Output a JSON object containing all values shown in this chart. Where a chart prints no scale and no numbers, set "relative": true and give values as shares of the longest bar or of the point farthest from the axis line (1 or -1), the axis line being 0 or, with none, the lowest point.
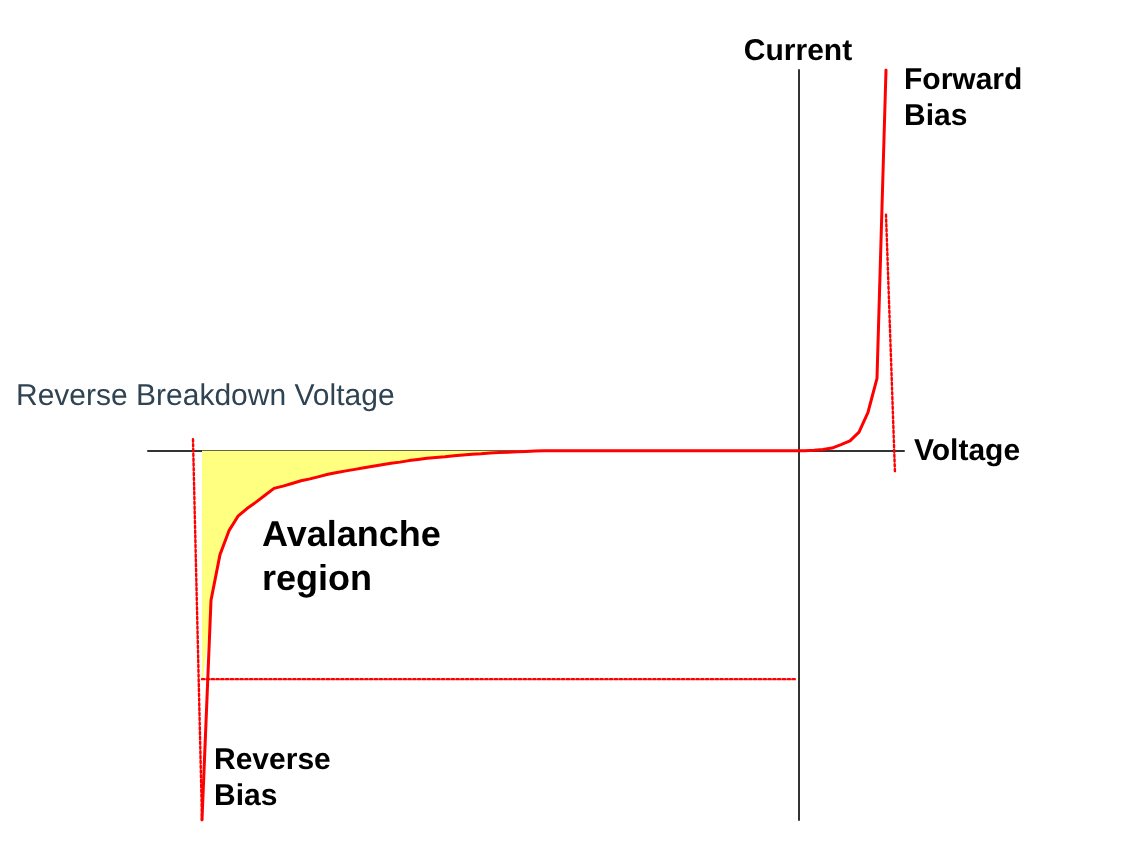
{
  "chart_data": {
    "type": "line",
    "relative": true,
    "xlabel": "Voltage",
    "ylabel": "Current",
    "grid": false,
    "marker": "none",
    "categories": [
      null,
      null,
      null,
      null,
      null,
      null,
      null,
      null,
      null,
      null,
      null,
      null,
      null,
      null,
      null,
      null,
      null,
      null,
      null,
      null,
      null,
      null,
      null,
      null,
      null,
      null,
      null,
      null,
      null,
      null,
      null,
      null,
      null,
      null,
      null,
      null,
      null,
      null,
      null,
      null,
      null,
      null,
      null,
      null,
      null,
      null,
      null,
      null,
      null,
      null,
      null,
      null,
      null,
      null,
      null,
      null,
      null,
      null,
      null,
      null,
      null,
      null,
      null,
      null,
      null,
      null,
      null,
      null,
      null,
      null,
      null,
      null,
      null,
      null,
      null,
      null,
      null,
      null,
      null,
      null,
      null,
      null,
      null,
      null,
      null
    ],
    "annotations": [
      "Forward Bias",
      "Reverse Breakdown Voltage",
      "Avalanche region",
      "Reverse Bias"
    ],
    "series": [
      {
        "type": "area",
        "color": "#ffff80",
        "values": [
          null,
          null,
          null,
          null,
          null,
          null,
          -0.6,
          -0.393,
          -0.273,
          -0.21,
          -0.172,
          -0.152,
          -0.135,
          -0.117,
          -0.099,
          -0.093,
          -0.086,
          -0.079,
          -0.074,
          -0.068,
          -0.062,
          -0.057,
          -0.053,
          -0.049,
          -0.045,
          -0.041,
          -0.037,
          -0.033,
          -0.03,
          -0.026,
          -0.023,
          -0.02,
          -0.018,
          -0.016,
          -0.013,
          -0.011,
          -0.009,
          -0.008,
          -0.006,
          -0.005,
          -0.004,
          -0.003,
          -0.002,
          -0.001,
          0,
          null,
          null,
          null,
          null,
          null,
          null,
          null,
          null,
          null,
          null,
          null,
          null,
          null,
          null,
          null,
          null,
          null,
          null,
          null,
          null,
          null,
          null,
          null,
          null,
          null,
          null,
          null,
          null,
          null,
          null,
          null,
          null,
          null,
          null,
          null,
          null,
          null,
          null,
          null,
          null
        ]
      },
      {
        "type": "line",
        "line_style": "dotted",
        "color": "#ff0000",
        "values": [
          null,
          null,
          null,
          null,
          null,
          0.03,
          -0.97,
          null,
          null,
          null,
          null,
          null,
          null,
          null,
          null,
          null,
          null,
          null,
          null,
          null,
          null,
          null,
          null,
          null,
          null,
          null,
          null,
          null,
          null,
          null,
          null,
          null,
          null,
          null,
          null,
          null,
          null,
          null,
          null,
          null,
          null,
          null,
          null,
          null,
          null,
          null,
          null,
          null,
          null,
          null,
          null,
          null,
          null,
          null,
          null,
          null,
          null,
          null,
          null,
          null,
          null,
          null,
          null,
          null,
          null,
          null,
          null,
          null,
          null,
          null,
          null,
          null,
          null,
          null,
          null,
          null,
          null,
          null,
          null,
          null,
          null,
          null,
          null,
          null,
          null
        ]
      },
      {
        "type": "line",
        "line_style": "dotted",
        "color": "#ff0000",
        "values": [
          null,
          null,
          null,
          null,
          null,
          null,
          -0.6,
          -0.6,
          -0.6,
          -0.6,
          -0.6,
          -0.6,
          -0.6,
          -0.6,
          -0.6,
          -0.6,
          -0.6,
          -0.6,
          -0.6,
          -0.6,
          -0.6,
          -0.6,
          -0.6,
          -0.6,
          -0.6,
          -0.6,
          -0.6,
          -0.6,
          -0.6,
          -0.6,
          -0.6,
          -0.6,
          -0.6,
          -0.6,
          -0.6,
          -0.6,
          -0.6,
          -0.6,
          -0.6,
          -0.6,
          -0.6,
          -0.6,
          -0.6,
          -0.6,
          -0.6,
          -0.6,
          -0.6,
          -0.6,
          -0.6,
          -0.6,
          -0.6,
          -0.6,
          -0.6,
          -0.6,
          -0.6,
          -0.6,
          -0.6,
          -0.6,
          -0.6,
          -0.6,
          -0.6,
          -0.6,
          -0.6,
          -0.6,
          -0.6,
          -0.6,
          -0.6,
          -0.6,
          -0.6,
          -0.6,
          -0.6,
          -0.6,
          -0.6,
          null,
          null,
          null,
          null,
          null,
          null,
          null,
          null,
          null,
          null,
          null,
          null
        ]
      },
      {
        "type": "line",
        "line_style": "dotted",
        "color": "#ff0000",
        "values": [
          null,
          null,
          null,
          null,
          null,
          null,
          null,
          null,
          null,
          null,
          null,
          null,
          null,
          null,
          null,
          null,
          null,
          null,
          null,
          null,
          null,
          null,
          null,
          null,
          null,
          null,
          null,
          null,
          null,
          null,
          null,
          null,
          null,
          null,
          null,
          null,
          null,
          null,
          null,
          null,
          null,
          null,
          null,
          null,
          null,
          null,
          null,
          null,
          null,
          null,
          null,
          null,
          null,
          null,
          null,
          null,
          null,
          null,
          null,
          null,
          null,
          null,
          null,
          null,
          null,
          null,
          null,
          null,
          null,
          null,
          null,
          null,
          null,
          null,
          null,
          null,
          null,
          null,
          null,
          null,
          null,
          null,
          0.62,
          -0.06,
          null
        ]
      },
      {
        "color": "#ff0000",
        "values": [
          null,
          null,
          null,
          null,
          null,
          null,
          -0.97,
          -0.393,
          -0.273,
          -0.21,
          -0.172,
          -0.152,
          -0.135,
          -0.117,
          -0.099,
          -0.093,
          -0.086,
          -0.079,
          -0.074,
          -0.068,
          -0.062,
          -0.057,
          -0.053,
          -0.049,
          -0.045,
          -0.041,
          -0.037,
          -0.033,
          -0.03,
          -0.026,
          -0.023,
          -0.02,
          -0.018,
          -0.016,
          -0.013,
          -0.011,
          -0.009,
          -0.008,
          -0.006,
          -0.005,
          -0.004,
          -0.003,
          -0.002,
          -0.001,
          0,
          0,
          0,
          0,
          0,
          0,
          0,
          0,
          0,
          0,
          0,
          0,
          0,
          0,
          0,
          0,
          0,
          0,
          0,
          0,
          0,
          0,
          0,
          0,
          0,
          0,
          0,
          0,
          0,
          0,
          0.001,
          0.003,
          0.007,
          0.016,
          0.026,
          0.049,
          0.101,
          0.19,
          1,
          null,
          null
        ]
      }
    ]
  }
}
